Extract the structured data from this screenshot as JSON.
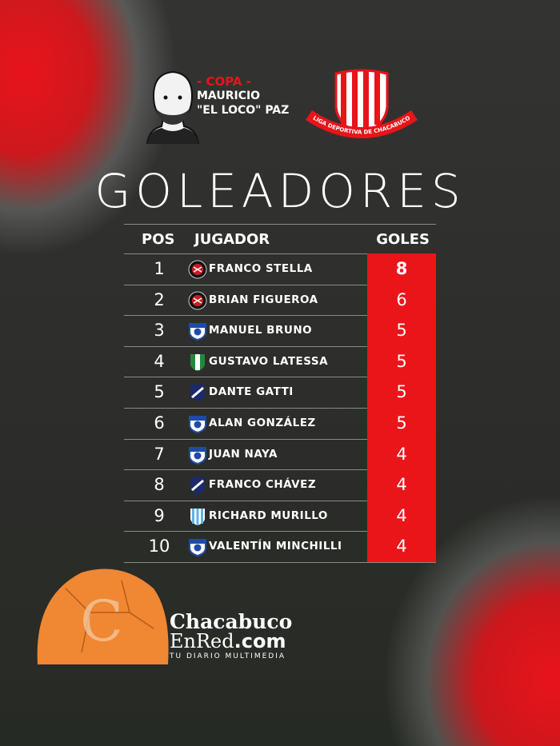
{
  "header": {
    "copa": "- COPA -",
    "line1": "MAURICIO",
    "line2": "\"EL LOCO\" PAZ",
    "league_logo_text": "LIGA DEPORTIVA DE CHACABUCO"
  },
  "title": "GOLEADORES",
  "table": {
    "columns": {
      "pos": "POS",
      "player": "JUGADOR",
      "goals": "GOLES"
    },
    "rows": [
      {
        "pos": "1",
        "player": "FRANCO STELLA",
        "goals": "8",
        "crest": "black-red-round"
      },
      {
        "pos": "2",
        "player": "BRIAN FIGUEROA",
        "goals": "6",
        "crest": "black-red-round"
      },
      {
        "pos": "3",
        "player": "MANUEL BRUNO",
        "goals": "5",
        "crest": "blue-white-shield"
      },
      {
        "pos": "4",
        "player": "GUSTAVO LATESSA",
        "goals": "5",
        "crest": "green-white-shield"
      },
      {
        "pos": "5",
        "player": "DANTE GATTI",
        "goals": "5",
        "crest": "navy-diagonal-shield"
      },
      {
        "pos": "6",
        "player": "ALAN GONZÁLEZ",
        "goals": "5",
        "crest": "blue-white-shield"
      },
      {
        "pos": "7",
        "player": "JUAN NAYA",
        "goals": "4",
        "crest": "blue-white-shield"
      },
      {
        "pos": "8",
        "player": "FRANCO CHÁVEZ",
        "goals": "4",
        "crest": "navy-diagonal-shield"
      },
      {
        "pos": "9",
        "player": "RICHARD MURILLO",
        "goals": "4",
        "crest": "skyblue-striped-shield"
      },
      {
        "pos": "10",
        "player": "VALENTÍN MINCHILLI",
        "goals": "4",
        "crest": "blue-white-shield"
      }
    ]
  },
  "footer": {
    "brand_line1": "Chacabuco",
    "brand_line2a": "EnRed",
    "brand_line2b": ".com",
    "tagline": "TU DIARIO MULTIMEDIA"
  },
  "colors": {
    "accent": "#ea1519",
    "background": "#2f302d",
    "text": "#ffffff"
  }
}
